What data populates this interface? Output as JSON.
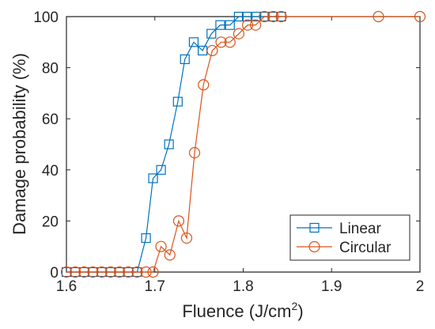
{
  "chart_data": {
    "type": "line",
    "xlabel": "Fluence (J/cm",
    "xlabel_sup": "2",
    "xlabel_end": ")",
    "ylabel": "Damage probability (%)",
    "xlim": [
      1.6,
      2.0
    ],
    "ylim": [
      0,
      100
    ],
    "xticks": [
      "1.6",
      "1.7",
      "1.8",
      "1.9",
      "2"
    ],
    "yticks": [
      "0",
      "20",
      "40",
      "60",
      "80",
      "100"
    ],
    "legend_position": "bottom-right",
    "grid": false,
    "series": [
      {
        "name": "Linear",
        "marker": "square",
        "color": "#0072BD",
        "points": [
          [
            1.6,
            0
          ],
          [
            1.61,
            0
          ],
          [
            1.62,
            0
          ],
          [
            1.63,
            0
          ],
          [
            1.64,
            0
          ],
          [
            1.65,
            0
          ],
          [
            1.66,
            0
          ],
          [
            1.67,
            0
          ],
          [
            1.68,
            0
          ],
          [
            1.69,
            13.3
          ],
          [
            1.698,
            36.7
          ],
          [
            1.707,
            40
          ],
          [
            1.716,
            50
          ],
          [
            1.726,
            66.7
          ],
          [
            1.734,
            83.3
          ],
          [
            1.744,
            90
          ],
          [
            1.754,
            86.7
          ],
          [
            1.764,
            93.3
          ],
          [
            1.774,
            96.7
          ],
          [
            1.785,
            96.7
          ],
          [
            1.795,
            100
          ],
          [
            1.804,
            100
          ],
          [
            1.815,
            100
          ],
          [
            1.824,
            100
          ],
          [
            1.833,
            100
          ],
          [
            1.843,
            100
          ]
        ]
      },
      {
        "name": "Circular",
        "marker": "circle",
        "color": "#D95319",
        "points": [
          [
            1.6,
            0
          ],
          [
            1.61,
            0
          ],
          [
            1.62,
            0
          ],
          [
            1.63,
            0
          ],
          [
            1.64,
            0
          ],
          [
            1.65,
            0
          ],
          [
            1.66,
            0
          ],
          [
            1.67,
            0
          ],
          [
            1.68,
            0
          ],
          [
            1.69,
            0
          ],
          [
            1.698,
            0
          ],
          [
            1.707,
            10
          ],
          [
            1.717,
            6.7
          ],
          [
            1.727,
            20
          ],
          [
            1.736,
            13.3
          ],
          [
            1.745,
            46.7
          ],
          [
            1.755,
            73.3
          ],
          [
            1.765,
            86.7
          ],
          [
            1.775,
            90
          ],
          [
            1.785,
            90
          ],
          [
            1.795,
            93.3
          ],
          [
            1.805,
            96.7
          ],
          [
            1.814,
            96.7
          ],
          [
            1.824,
            100
          ],
          [
            1.834,
            100
          ],
          [
            1.843,
            100
          ],
          [
            1.953,
            100
          ],
          [
            2.0,
            100
          ]
        ]
      }
    ]
  }
}
